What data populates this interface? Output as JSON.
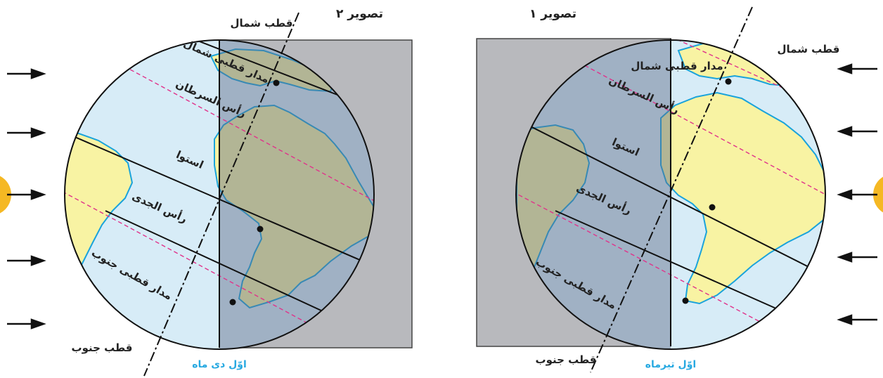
{
  "colors": {
    "ocean": "#d7ecf7",
    "land": "#f8f3a3",
    "coast": "#1aa3db",
    "shadow": "#5d6b85",
    "shadow_box": "#b8b9bd",
    "tropic_line": "#e0338b",
    "line": "#111111",
    "date_text": "#27a9e1",
    "sun": "#f5b823"
  },
  "figure1": {
    "title": "تصویر ۱",
    "north_pole": "قطب شمال",
    "south_pole": "قطب جنوب",
    "arctic_circle": "مدار قطبی شمال",
    "tropic_cancer": "رأس السرطان",
    "equator": "استوا",
    "tropic_capricorn": "رأس الجدی",
    "antarctic_circle": "مدار قطبی جنوب",
    "date": "اوّل تیرماه"
  },
  "figure2": {
    "title": "تصویر ۲",
    "north_pole": "قطب شمال",
    "south_pole": "قطب جنوب",
    "arctic_circle": "مدار قطبی شمال",
    "tropic_cancer": "رأس السرطان",
    "equator": "استوا",
    "tropic_capricorn": "رأس الجدی",
    "antarctic_circle": "مدار قطبی جنوب",
    "date": "اوّل دی ماه"
  },
  "icons": {
    "sunlight_arrow": "arrow-icon",
    "sun": "sun-icon"
  }
}
